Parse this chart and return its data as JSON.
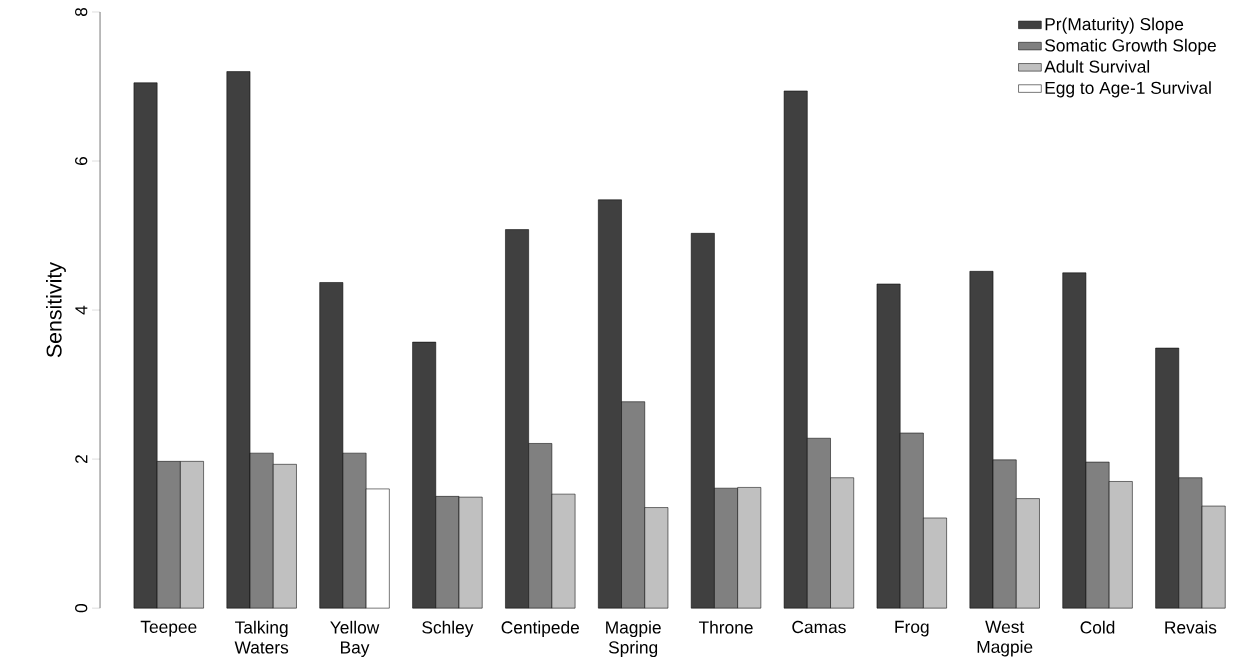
{
  "chart_data": {
    "type": "bar",
    "ylabel": "Sensitivity",
    "categories": [
      "Teepee",
      "Talking Waters",
      "Yellow Bay",
      "Schley",
      "Centipede",
      "Magpie Spring",
      "Throne",
      "Camas",
      "Frog",
      "West Magpie",
      "Cold",
      "Revais"
    ],
    "series": [
      {
        "name": "Pr(Maturity) Slope",
        "color": "#404040",
        "values": [
          7.05,
          7.2,
          4.37,
          3.57,
          5.08,
          5.48,
          5.03,
          6.94,
          4.35,
          4.52,
          4.5,
          3.49
        ]
      },
      {
        "name": "Somatic Growth Slope",
        "color": "#808080",
        "values": [
          1.97,
          2.08,
          2.08,
          1.5,
          2.21,
          2.77,
          1.61,
          2.28,
          2.35,
          1.99,
          1.96,
          1.75
        ]
      },
      {
        "name": "Adult Survival",
        "color": "#c0c0c0",
        "values": [
          1.97,
          1.93,
          null,
          1.49,
          1.53,
          1.35,
          1.62,
          1.75,
          1.21,
          1.47,
          1.7,
          1.37
        ]
      },
      {
        "name": "Egg to Age-1 Survival",
        "color": "#ffffff",
        "values": [
          null,
          null,
          1.6,
          null,
          null,
          null,
          null,
          null,
          null,
          null,
          null,
          null
        ]
      }
    ],
    "ylim": [
      0,
      8
    ],
    "yticks": [
      0,
      2,
      4,
      6,
      8
    ],
    "legend": "top right"
  }
}
